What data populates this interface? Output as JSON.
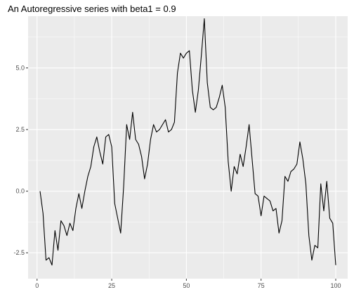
{
  "chart_data": {
    "type": "line",
    "title": "An Autoregressive series with beta1 = 0.9",
    "xlabel": "",
    "ylabel": "",
    "xlim": [
      -3,
      104
    ],
    "ylim": [
      -3.55,
      7.1
    ],
    "x_ticks": [
      0,
      25,
      50,
      75,
      100
    ],
    "y_ticks": [
      -2.5,
      0.0,
      2.5,
      5.0
    ],
    "x_tick_labels": [
      "0",
      "25",
      "50",
      "75",
      "100"
    ],
    "y_tick_labels": [
      "-2.5",
      "0.0",
      "2.5",
      "5.0"
    ],
    "grid": true,
    "panel_background": "#ebebeb",
    "grid_color": "#ffffff",
    "line_color": "#000000",
    "series": [
      {
        "x": [
          1,
          2,
          3,
          4,
          5,
          6,
          7,
          8,
          9,
          10,
          11,
          12,
          13,
          14,
          15,
          16,
          17,
          18,
          19,
          20,
          21,
          22,
          23,
          24,
          25,
          26,
          27,
          28,
          29,
          30,
          31,
          32,
          33,
          34,
          35,
          36,
          37,
          38,
          39,
          40,
          41,
          42,
          43,
          44,
          45,
          46,
          47,
          48,
          49,
          50,
          51,
          52,
          53,
          54,
          55,
          56,
          57,
          58,
          59,
          60,
          61,
          62,
          63,
          64,
          65,
          66,
          67,
          68,
          69,
          70,
          71,
          72,
          73,
          74,
          75,
          76,
          77,
          78,
          79,
          80,
          81,
          82,
          83,
          84,
          85,
          86,
          87,
          88,
          89,
          90,
          91,
          92,
          93,
          94,
          95,
          96,
          97,
          98,
          99,
          100
        ],
        "y": [
          0.0,
          -0.9,
          -2.8,
          -2.7,
          -3.0,
          -1.6,
          -2.4,
          -1.2,
          -1.4,
          -1.8,
          -1.3,
          -1.6,
          -0.7,
          -0.1,
          -0.7,
          0.0,
          0.6,
          1.0,
          1.8,
          2.2,
          1.6,
          1.1,
          2.2,
          2.3,
          1.8,
          -0.5,
          -1.1,
          -1.7,
          0.2,
          2.7,
          2.1,
          3.2,
          2.1,
          1.9,
          1.4,
          0.5,
          1.1,
          2.1,
          2.7,
          2.4,
          2.5,
          2.7,
          2.9,
          2.4,
          2.5,
          2.8,
          4.8,
          5.6,
          5.4,
          5.6,
          5.7,
          4.1,
          3.2,
          4.1,
          5.5,
          7.0,
          4.4,
          3.4,
          3.3,
          3.4,
          3.8,
          4.3,
          3.4,
          1.2,
          0.0,
          1.0,
          0.7,
          1.5,
          1.0,
          1.8,
          2.7,
          1.3,
          -0.1,
          -0.2,
          -1.0,
          -0.2,
          -0.3,
          -0.4,
          -0.8,
          -0.7,
          -1.7,
          -1.2,
          0.6,
          0.4,
          0.8,
          0.9,
          1.1,
          2.0,
          1.3,
          0.3,
          -1.8,
          -2.8,
          -2.2,
          -2.3,
          0.3,
          -0.8,
          0.4,
          -1.1,
          -1.3,
          -3.0
        ]
      }
    ]
  }
}
